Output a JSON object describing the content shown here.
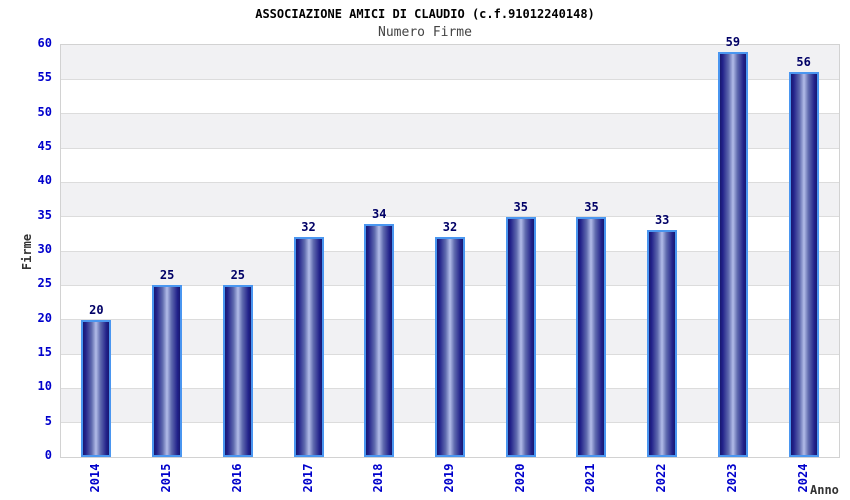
{
  "header": {
    "title": "ASSOCIAZIONE AMICI DI CLAUDIO (c.f.91012240148)",
    "subtitle": "Numero Firme"
  },
  "chart_data": {
    "type": "bar",
    "title": "ASSOCIAZIONE AMICI DI CLAUDIO (c.f.91012240148)",
    "subtitle": "Numero Firme",
    "xlabel": "Anno",
    "ylabel": "Firme",
    "categories": [
      "2014",
      "2015",
      "2016",
      "2017",
      "2018",
      "2019",
      "2020",
      "2021",
      "2022",
      "2023",
      "2024"
    ],
    "values": [
      20,
      25,
      25,
      32,
      34,
      32,
      35,
      35,
      33,
      59,
      56
    ],
    "ylim": [
      0,
      60
    ],
    "ytick_step": 5,
    "yticks": [
      0,
      5,
      10,
      15,
      20,
      25,
      30,
      35,
      40,
      45,
      50,
      55,
      60
    ],
    "data_labels": "above bars",
    "legend": "none",
    "grid": "horizontal gridlines every 5 with alternating gray/white bands",
    "colors": {
      "bar_dark": "#181870",
      "bar_light_center": "#b2bce8",
      "bar_border": "#4a96f0",
      "tick_label": "#0000cc",
      "value_label": "#000066",
      "band_gray": "#f1f1f3",
      "gridline": "#dcdcdc",
      "plot_border": "#d2d2d2",
      "title_color": "#000000",
      "subtitle_color": "#444444",
      "axis_title_color": "#333333",
      "background": "#ffffff"
    }
  }
}
